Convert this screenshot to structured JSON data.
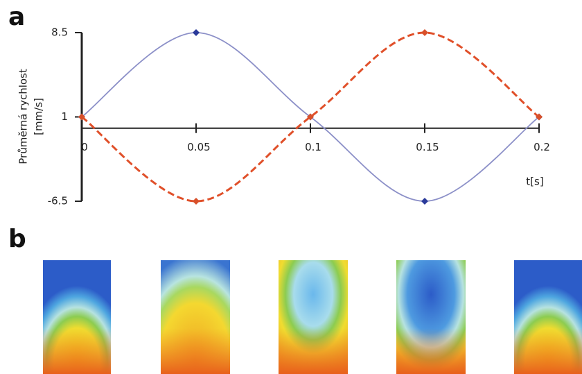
{
  "panel_a_label": "a",
  "panel_b_label": "b",
  "chart_data": {
    "type": "line",
    "ylabel": [
      "Průměrná rychlost",
      "[mm/s]"
    ],
    "xlabel": "t[s]",
    "x": [
      0,
      0.05,
      0.1,
      0.15,
      0.2
    ],
    "series": [
      {
        "color": "#8c90c8",
        "marker_color": "#2a3a9a",
        "dashed": false,
        "values": [
          1,
          8.5,
          1,
          -6.5,
          1
        ]
      },
      {
        "color": "#e0502a",
        "marker_color": "#d8502a",
        "dashed": true,
        "values": [
          1,
          -6.5,
          1,
          8.5,
          1
        ]
      }
    ],
    "xlim": [
      0,
      0.2
    ],
    "ylim": [
      -6.5,
      8.5
    ],
    "xticks": [
      0,
      0.05,
      0.1,
      0.15,
      0.2
    ],
    "yticks": [
      -6.5,
      1,
      8.5
    ]
  }
}
